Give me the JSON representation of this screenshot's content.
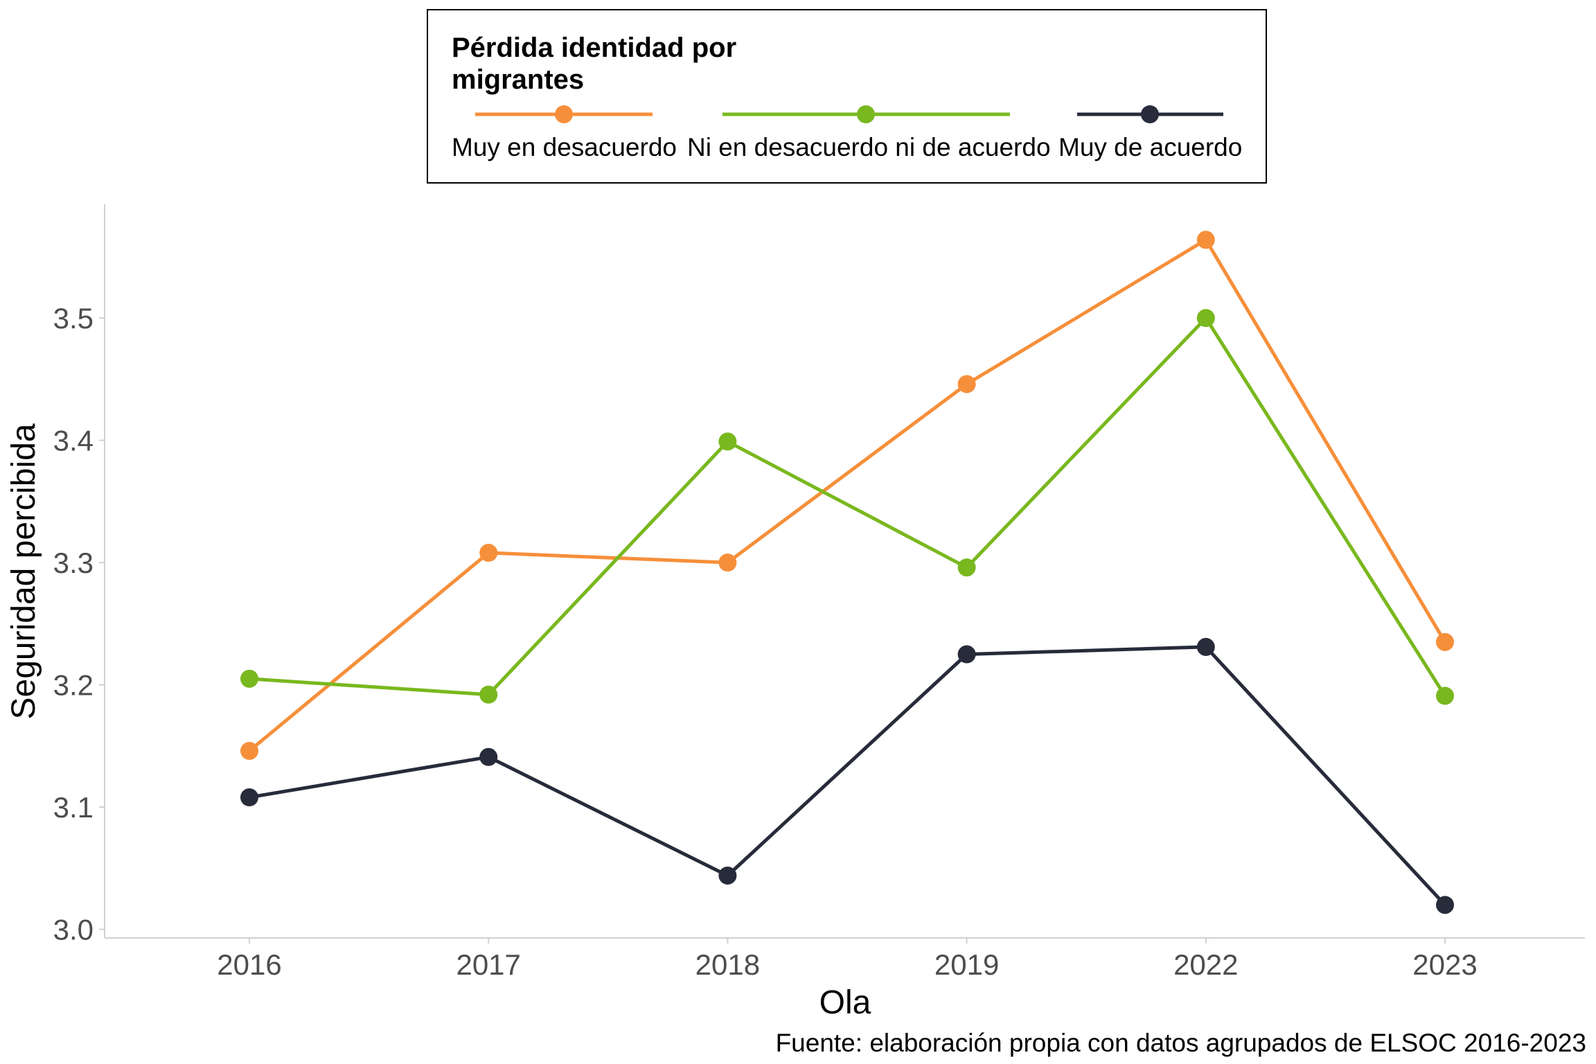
{
  "chart_data": {
    "type": "line",
    "categories": [
      "2016",
      "2017",
      "2018",
      "2019",
      "2022",
      "2023"
    ],
    "xlabel": "Ola",
    "ylabel": "Seguridad percibida",
    "ylim": [
      2.993,
      3.593
    ],
    "yticks": [
      "3.0",
      "3.1",
      "3.2",
      "3.3",
      "3.4",
      "3.5"
    ],
    "grid": false,
    "legend": {
      "title_line1": "Pérdida identidad por",
      "title_line2": "migrantes",
      "position": "top-center"
    },
    "series": [
      {
        "name": "Muy en desacuerdo",
        "color": "#f68f3a",
        "values": [
          3.146,
          3.308,
          3.3,
          3.446,
          3.564,
          3.235
        ]
      },
      {
        "name": "Ni en desacuerdo ni de acuerdo",
        "color": "#79b81e",
        "values": [
          3.205,
          3.192,
          3.399,
          3.296,
          3.5,
          3.191
        ]
      },
      {
        "name": "Muy de acuerdo",
        "color": "#272b3a",
        "values": [
          3.108,
          3.141,
          3.044,
          3.225,
          3.231,
          3.02
        ]
      }
    ],
    "caption": "Fuente: elaboración propia con datos agrupados de ELSOC 2016-2023"
  }
}
